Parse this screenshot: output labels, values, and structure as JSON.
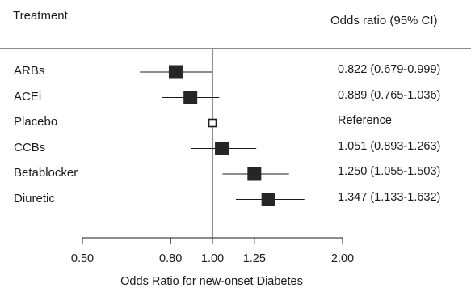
{
  "chart_data": {
    "type": "forest",
    "header": {
      "left": "Treatment",
      "right": "Odds ratio (95% CI)"
    },
    "xlabel": "Odds Ratio for new-onset Diabetes",
    "scale": "log",
    "xlim": [
      0.5,
      2.0
    ],
    "reference_line": 1.0,
    "x_ticks": [
      {
        "value": 0.5,
        "label": "0.50"
      },
      {
        "value": 0.8,
        "label": "0.80"
      },
      {
        "value": 1.0,
        "label": "1.00"
      },
      {
        "value": 1.25,
        "label": "1.25"
      },
      {
        "value": 2.0,
        "label": "2.00"
      }
    ],
    "rows": [
      {
        "label": "ARBs",
        "or": 0.822,
        "lo": 0.679,
        "hi": 0.999,
        "text": "0.822 (0.679-0.999)",
        "reference": false
      },
      {
        "label": "ACEi",
        "or": 0.889,
        "lo": 0.765,
        "hi": 1.036,
        "text": "0.889 (0.765-1.036)",
        "reference": false
      },
      {
        "label": "Placebo",
        "or": 1.0,
        "lo": 1.0,
        "hi": 1.0,
        "text": "Reference",
        "reference": true
      },
      {
        "label": "CCBs",
        "or": 1.051,
        "lo": 0.893,
        "hi": 1.263,
        "text": "1.051 (0.893-1.263)",
        "reference": false
      },
      {
        "label": "Betablocker",
        "or": 1.25,
        "lo": 1.055,
        "hi": 1.503,
        "text": "1.250 (1.055-1.503)",
        "reference": false
      },
      {
        "label": "Diuretic",
        "or": 1.347,
        "lo": 1.133,
        "hi": 1.632,
        "text": "1.347 (1.133-1.632)",
        "reference": false
      }
    ],
    "colors": {
      "marker": "#262626",
      "line": "#1a1a1a",
      "reference_marker_fill": "#ffffff"
    }
  }
}
